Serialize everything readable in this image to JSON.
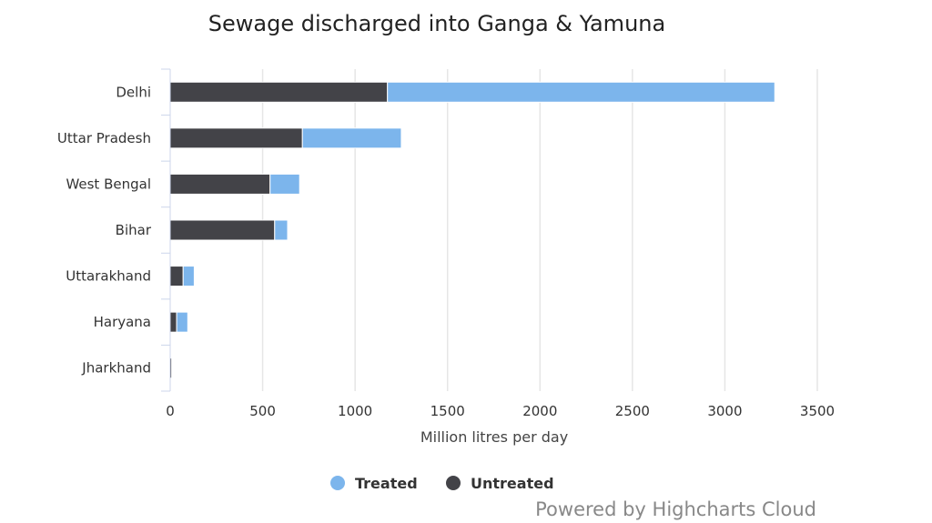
{
  "chart_data": {
    "type": "bar",
    "orientation": "horizontal",
    "stacked": true,
    "title": "Sewage discharged into Ganga & Yamuna",
    "xlabel": "Million litres per day",
    "ylabel": "",
    "categories": [
      "Delhi",
      "Uttar Pradesh",
      "West Bengal",
      "Bihar",
      "Uttarakhand",
      "Haryana",
      "Jharkhand"
    ],
    "series": [
      {
        "name": "Untreated",
        "color": "#434348",
        "values": [
          1175,
          715,
          540,
          565,
          70,
          35,
          8
        ]
      },
      {
        "name": "Treated",
        "color": "#7cb5ec",
        "values": [
          2095,
          535,
          160,
          70,
          60,
          60,
          0
        ]
      }
    ],
    "xlim": [
      0,
      3500
    ],
    "ticks": [
      "0",
      "500",
      "1000",
      "1500",
      "2000",
      "2500",
      "3000",
      "3500"
    ],
    "grid": true,
    "legend": [
      "Treated",
      "Untreated"
    ],
    "legend_position": "bottom-center"
  },
  "credits": "Powered by Highcharts Cloud"
}
